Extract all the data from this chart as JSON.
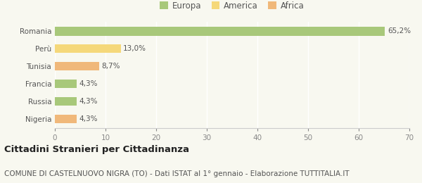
{
  "categories": [
    "Nigeria",
    "Russia",
    "Francia",
    "Tunisia",
    "Perù",
    "Romania"
  ],
  "values": [
    4.3,
    4.3,
    4.3,
    8.7,
    13.0,
    65.2
  ],
  "labels": [
    "4,3%",
    "4,3%",
    "4,3%",
    "8,7%",
    "13,0%",
    "65,2%"
  ],
  "colors": [
    "#f0b87a",
    "#a8c87a",
    "#a8c87a",
    "#f0b87a",
    "#f5d87a",
    "#a8c87a"
  ],
  "legend_labels": [
    "Europa",
    "America",
    "Africa"
  ],
  "legend_colors": [
    "#a8c87a",
    "#f5d87a",
    "#f0b87a"
  ],
  "xlim": [
    0,
    70
  ],
  "xticks": [
    0,
    10,
    20,
    30,
    40,
    50,
    60,
    70
  ],
  "title": "Cittadini Stranieri per Cittadinanza",
  "subtitle": "COMUNE DI CASTELNUOVO NIGRA (TO) - Dati ISTAT al 1° gennaio - Elaborazione TUTTITALIA.IT",
  "background_color": "#f8f8f0",
  "bar_height": 0.5,
  "title_fontsize": 9.5,
  "subtitle_fontsize": 7.5,
  "label_fontsize": 7.5,
  "tick_fontsize": 7.5,
  "legend_fontsize": 8.5
}
